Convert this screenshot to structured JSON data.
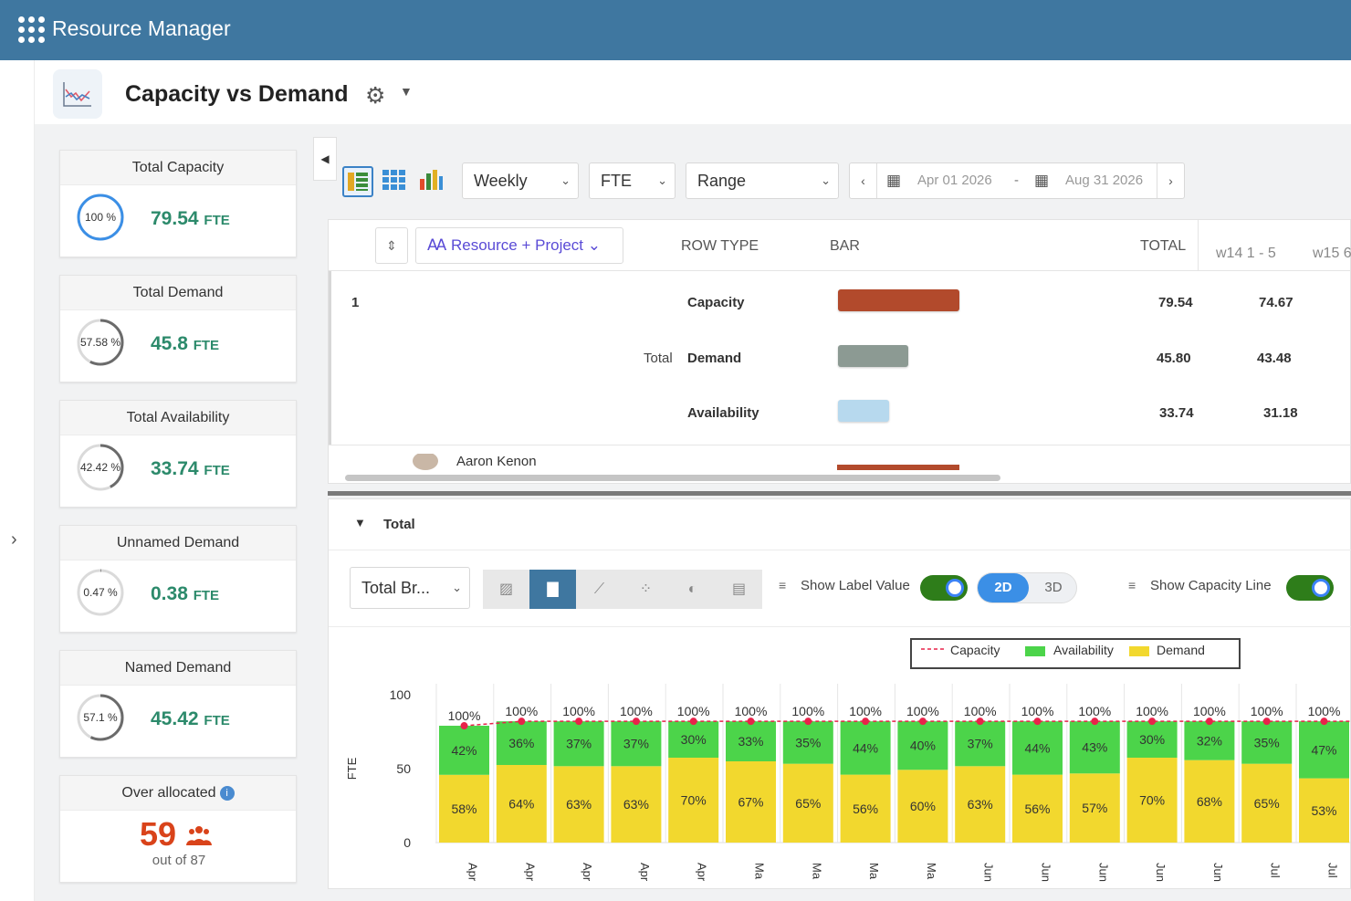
{
  "app": {
    "title": "Resource Manager"
  },
  "page": {
    "title": "Capacity vs Demand"
  },
  "kpis": [
    {
      "title": "Total Capacity",
      "pct": "100 %",
      "value": "79.54",
      "unit": "FTE",
      "ratio": 1.0
    },
    {
      "title": "Total Demand",
      "pct": "57.58 %",
      "value": "45.8",
      "unit": "FTE",
      "ratio": 0.5758
    },
    {
      "title": "Total Availability",
      "pct": "42.42 %",
      "value": "33.74",
      "unit": "FTE",
      "ratio": 0.4242
    },
    {
      "title": "Unnamed Demand",
      "pct": "0.47 %",
      "value": "0.38",
      "unit": "FTE",
      "ratio": 0.0047
    },
    {
      "title": "Named Demand",
      "pct": "57.1 %",
      "value": "45.42",
      "unit": "FTE",
      "ratio": 0.571
    }
  ],
  "overallocated": {
    "title": "Over allocated",
    "count": "59",
    "sub": "out of 87",
    "info": "i"
  },
  "toolbar": {
    "period": "Weekly",
    "unit": "FTE",
    "range": "Range",
    "date_from": "Apr 01 2026",
    "date_sep": "-",
    "date_to": "Aug 31 2026"
  },
  "table": {
    "group_label": "Resource + Project",
    "headers": {
      "row_type": "ROW TYPE",
      "bar": "BAR",
      "total": "TOTAL"
    },
    "weeks": [
      "w14 1 - 5",
      "w15 6"
    ],
    "row_index": "1",
    "total_label": "Total",
    "rows": [
      {
        "type": "Capacity",
        "total": "79.54",
        "w14": "74.67",
        "color": "#b24a2c",
        "ratio": 1.0
      },
      {
        "type": "Demand",
        "total": "45.80",
        "w14": "43.48",
        "color": "#8c9a93",
        "ratio": 0.5758
      },
      {
        "type": "Availability",
        "total": "33.74",
        "w14": "31.18",
        "color": "#b7d9ee",
        "ratio": 0.4242
      }
    ],
    "next_person": "Aaron Kenon"
  },
  "chart_panel": {
    "section_title": "Total",
    "chart_select": "Total Br...",
    "show_label": "Show Label Value",
    "mode_2d": "2D",
    "mode_3d": "3D",
    "show_capacity": "Show Capacity Line"
  },
  "chart_data": {
    "type": "bar",
    "stacked": true,
    "ylabel": "FTE",
    "ylim": [
      0,
      100
    ],
    "yticks": [
      0,
      50,
      100
    ],
    "legend": [
      "Capacity",
      "Availability",
      "Demand"
    ],
    "colors": {
      "capacity": "#e8234a",
      "availability": "#4cd44a",
      "demand": "#f2d82e"
    },
    "categories": [
      "Apr",
      "Apr",
      "Apr",
      "Apr",
      "Apr",
      "Ma",
      "Ma",
      "Ma",
      "Ma",
      "Jun",
      "Jun",
      "Jun",
      "Jun",
      "Jun",
      "Jul",
      "Jul"
    ],
    "capacity_labels": [
      "100%",
      "100%",
      "100%",
      "100%",
      "100%",
      "100%",
      "100%",
      "100%",
      "100%",
      "100%",
      "100%",
      "100%",
      "100%",
      "100%",
      "100%",
      "100%"
    ],
    "series": [
      {
        "name": "Demand",
        "values": [
          58,
          64,
          63,
          63,
          70,
          67,
          65,
          56,
          60,
          63,
          56,
          57,
          70,
          68,
          65,
          53
        ]
      },
      {
        "name": "Availability",
        "values": [
          42,
          36,
          37,
          37,
          30,
          33,
          35,
          44,
          40,
          37,
          44,
          43,
          30,
          32,
          35,
          47
        ]
      }
    ],
    "capacity": [
      79,
      82,
      82,
      82,
      82,
      82,
      82,
      82,
      82,
      82,
      82,
      82,
      82,
      82,
      82,
      82
    ]
  }
}
